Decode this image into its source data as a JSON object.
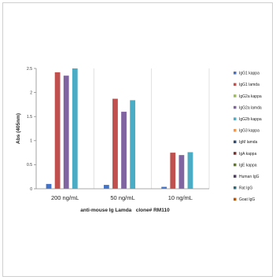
{
  "chart_data": {
    "type": "bar",
    "title": "",
    "xlabel": "anti-mouse Ig Lamda   clone# RM110",
    "ylabel": "Abs (405nm)",
    "categories": [
      "200 ng/mL",
      "50 ng/mL",
      "10 ng/mL"
    ],
    "ylim": [
      0,
      2.5
    ],
    "yticks": [
      0,
      0.5,
      1,
      1.5,
      2,
      2.5
    ],
    "grid": "vertical category separators",
    "legend_position": "right",
    "series": [
      {
        "name": "IgG1 kappa",
        "color": "#4472c4",
        "values": [
          0.1,
          0.08,
          0.04
        ]
      },
      {
        "name": "IgG1 lamda",
        "color": "#c0504d",
        "values": [
          2.42,
          1.87,
          0.75
        ]
      },
      {
        "name": "IgG2a kappa",
        "color": "#9bbb59",
        "values": [
          0,
          0,
          0
        ]
      },
      {
        "name": "IgG2a lamda",
        "color": "#8064a2",
        "values": [
          2.35,
          1.6,
          0.7
        ]
      },
      {
        "name": "IgG2b kappa",
        "color": "#4bacc6",
        "values": [
          2.5,
          1.84,
          0.76
        ]
      },
      {
        "name": "IgG3 kappa",
        "color": "#f79646",
        "values": [
          0,
          0,
          0
        ]
      },
      {
        "name": "IgM lamda",
        "color": "#2c4d75",
        "values": [
          0,
          0,
          0
        ]
      },
      {
        "name": "IgA kappa",
        "color": "#772c2a",
        "values": [
          0,
          0,
          0
        ]
      },
      {
        "name": "IgE kappa",
        "color": "#5f7530",
        "values": [
          0,
          0,
          0
        ]
      },
      {
        "name": "Human IgG",
        "color": "#4d3b62",
        "values": [
          0,
          0,
          0
        ]
      },
      {
        "name": "Rat IgG",
        "color": "#276a7c",
        "values": [
          0,
          0,
          0
        ]
      },
      {
        "name": "Goat IgG",
        "color": "#b65708",
        "values": [
          0,
          0,
          0
        ]
      }
    ]
  }
}
